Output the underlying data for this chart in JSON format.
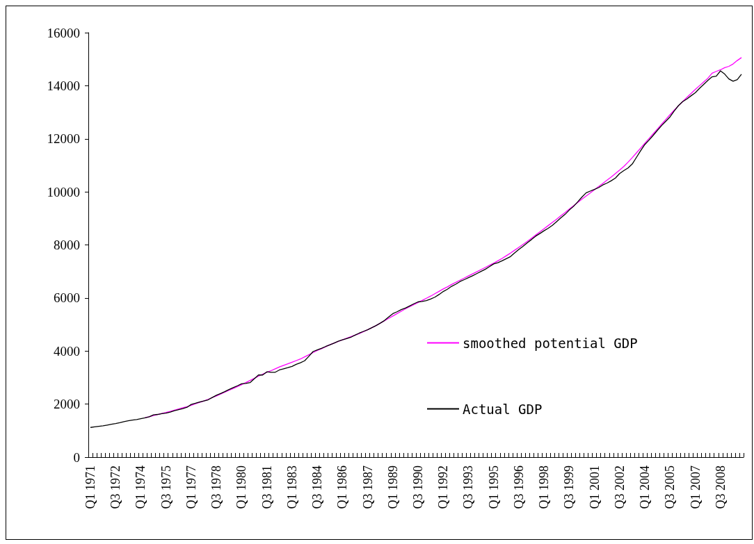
{
  "chart_data": {
    "type": "line",
    "categories": [
      "Q1 1971",
      null,
      null,
      null,
      null,
      null,
      "Q3 1972",
      null,
      null,
      null,
      null,
      null,
      "Q1 1974",
      null,
      null,
      null,
      null,
      null,
      "Q3 1975",
      null,
      null,
      null,
      null,
      null,
      "Q1 1977",
      null,
      null,
      null,
      null,
      null,
      "Q3 1978",
      null,
      null,
      null,
      null,
      null,
      "Q1 1980",
      null,
      null,
      null,
      null,
      null,
      "Q3 1981",
      null,
      null,
      null,
      null,
      null,
      "Q1 1983",
      null,
      null,
      null,
      null,
      null,
      "Q3 1984",
      null,
      null,
      null,
      null,
      null,
      "Q1 1986",
      null,
      null,
      null,
      null,
      null,
      "Q3 1987",
      null,
      null,
      null,
      null,
      null,
      "Q1 1989",
      null,
      null,
      null,
      null,
      null,
      "Q3 1990",
      null,
      null,
      null,
      null,
      null,
      "Q1 1992",
      null,
      null,
      null,
      null,
      null,
      "Q3 1993",
      null,
      null,
      null,
      null,
      null,
      "Q1 1995",
      null,
      null,
      null,
      null,
      null,
      "Q3 1996",
      null,
      null,
      null,
      null,
      null,
      "Q1 1998",
      null,
      null,
      null,
      null,
      null,
      "Q3 1999",
      null,
      null,
      null,
      null,
      null,
      "Q1 2001",
      null,
      null,
      null,
      null,
      null,
      "Q3 2002",
      null,
      null,
      null,
      null,
      null,
      "Q1 2004",
      null,
      null,
      null,
      null,
      null,
      "Q3 2005",
      null,
      null,
      null,
      null,
      null,
      "Q1 2007",
      null,
      null,
      null,
      null,
      null,
      "Q3 2008",
      null,
      null,
      null,
      null,
      null
    ],
    "series": [
      {
        "name": "smoothed potential GDP",
        "color": "#ff00ff",
        "values": [
          null,
          null,
          null,
          null,
          null,
          null,
          null,
          null,
          null,
          null,
          null,
          null,
          null,
          1490,
          1525,
          1565,
          1605,
          1645,
          1685,
          1725,
          1770,
          1815,
          1860,
          1905,
          1955,
          2010,
          2065,
          2120,
          2180,
          2245,
          2310,
          2380,
          2450,
          2520,
          2590,
          2660,
          2735,
          2810,
          2890,
          2970,
          3050,
          3130,
          3200,
          3260,
          3330,
          3400,
          3460,
          3520,
          3580,
          3640,
          3700,
          3780,
          3860,
          3940,
          4020,
          4090,
          4160,
          4240,
          4300,
          4360,
          4420,
          4480,
          4540,
          4600,
          4660,
          4730,
          4800,
          4880,
          4960,
          5050,
          5140,
          5230,
          5320,
          5410,
          5500,
          5590,
          5670,
          5750,
          5830,
          5910,
          5990,
          6070,
          6160,
          6250,
          6340,
          6420,
          6510,
          6590,
          6670,
          6750,
          6830,
          6910,
          6990,
          7070,
          7150,
          7230,
          7310,
          7400,
          7490,
          7590,
          7690,
          7800,
          7910,
          8020,
          8130,
          8250,
          8370,
          8490,
          8610,
          8730,
          8850,
          8970,
          9100,
          9220,
          9350,
          9470,
          9600,
          9720,
          9840,
          9960,
          10080,
          10200,
          10320,
          10440,
          10560,
          10690,
          10820,
          10960,
          11120,
          11290,
          11470,
          11650,
          11830,
          12010,
          12190,
          12370,
          12550,
          12730,
          12910,
          13080,
          13240,
          13400,
          13560,
          13710,
          13860,
          14000,
          14140,
          14280,
          14470,
          14540,
          14600,
          14680,
          14730,
          14820,
          14950,
          15060
        ]
      },
      {
        "name": "Actual GDP",
        "color": "#000000",
        "values": [
          1119,
          1140,
          1160,
          1180,
          1210,
          1240,
          1267,
          1300,
          1340,
          1370,
          1400,
          1420,
          1449,
          1480,
          1520,
          1595,
          1610,
          1640,
          1657,
          1700,
          1750,
          1790,
          1829,
          1880,
          1986,
          2030,
          2080,
          2120,
          2159,
          2250,
          2333,
          2400,
          2470,
          2549,
          2620,
          2690,
          2766,
          2780,
          2810,
          2950,
          3096,
          3096,
          3217,
          3200,
          3200,
          3287,
          3330,
          3373,
          3420,
          3500,
          3560,
          3634,
          3800,
          3980,
          4040,
          4100,
          4171,
          4230,
          4300,
          4370,
          4420,
          4470,
          4518,
          4600,
          4675,
          4740,
          4800,
          4880,
          4960,
          5050,
          5150,
          5280,
          5410,
          5480,
          5560,
          5620,
          5700,
          5780,
          5853,
          5870,
          5900,
          5960,
          6030,
          6130,
          6243,
          6330,
          6440,
          6520,
          6620,
          6690,
          6764,
          6840,
          6920,
          7000,
          7080,
          7180,
          7284,
          7330,
          7400,
          7480,
          7560,
          7700,
          7830,
          7950,
          8080,
          8200,
          8330,
          8430,
          8533,
          8630,
          8740,
          8880,
          9020,
          9150,
          9313,
          9450,
          9620,
          9800,
          9960,
          10030,
          10094,
          10160,
          10260,
          10330,
          10420,
          10520,
          10692,
          10800,
          10900,
          11050,
          11300,
          11550,
          11785,
          11950,
          12130,
          12320,
          12500,
          12660,
          12825,
          13050,
          13250,
          13400,
          13500,
          13620,
          13736,
          13900,
          14050,
          14200,
          14334,
          14360,
          14560,
          14440,
          14256,
          14170,
          14230,
          14430
        ]
      }
    ],
    "ylim": [
      0,
      16000
    ],
    "yticks": [
      0,
      2000,
      4000,
      6000,
      8000,
      10000,
      12000,
      14000,
      16000
    ],
    "grid": false,
    "legend": "right",
    "marker": "none",
    "line_style": "solid"
  }
}
